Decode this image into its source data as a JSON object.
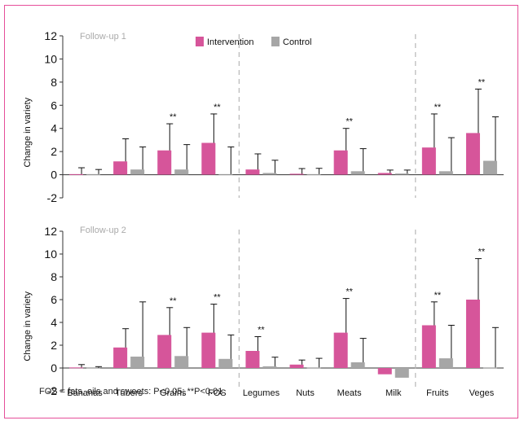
{
  "chart_data": [
    {
      "type": "bar",
      "panel_label": "Follow-up 1",
      "ylabel": "Change in variety",
      "ylim": [
        -2,
        12
      ],
      "yticks": [
        -2,
        0,
        2,
        4,
        6,
        8,
        10,
        12
      ],
      "categories": [
        "Bananas",
        "Tubers",
        "Grains",
        "FOS",
        "Legumes",
        "Nuts",
        "Meats",
        "Milk",
        "Fruits",
        "Veges"
      ],
      "legend_position": "top-center",
      "series": [
        {
          "name": "Intervention",
          "color": "#d6559a",
          "values": [
            0.05,
            1.15,
            2.1,
            2.75,
            0.45,
            0.08,
            2.1,
            0.15,
            2.35,
            3.6
          ],
          "error": [
            0.55,
            1.95,
            2.3,
            2.5,
            1.35,
            0.45,
            1.9,
            0.25,
            2.9,
            3.8
          ]
        },
        {
          "name": "Control",
          "color": "#a6a6a6",
          "values": [
            0.05,
            0.45,
            0.45,
            0.05,
            0.15,
            0.05,
            0.3,
            0.1,
            0.3,
            1.2
          ],
          "error": [
            0.4,
            1.95,
            2.15,
            2.35,
            1.1,
            0.5,
            1.95,
            0.3,
            2.9,
            3.8
          ]
        }
      ],
      "annotations": [
        {
          "category": "Grains",
          "text": "**"
        },
        {
          "category": "FOS",
          "text": "**"
        },
        {
          "category": "Meats",
          "text": "**"
        },
        {
          "category": "Fruits",
          "text": "**"
        },
        {
          "category": "Veges",
          "text": "**"
        }
      ]
    },
    {
      "type": "bar",
      "panel_label": "Follow-up 2",
      "ylabel": "Change in variety",
      "ylim": [
        -2,
        12
      ],
      "yticks": [
        -2,
        0,
        2,
        4,
        6,
        8,
        10,
        12
      ],
      "categories": [
        "Bananas",
        "Tubers",
        "Grains",
        "FOS",
        "Legumes",
        "Nuts",
        "Meats",
        "Milk",
        "Fruits",
        "Veges"
      ],
      "series": [
        {
          "name": "Intervention",
          "color": "#d6559a",
          "values": [
            0.05,
            1.8,
            2.9,
            3.1,
            1.5,
            0.3,
            3.1,
            -0.55,
            3.75,
            6.0
          ],
          "error": [
            0.25,
            1.65,
            2.4,
            2.5,
            1.25,
            0.4,
            3.0,
            0.0,
            2.05,
            3.6
          ]
        },
        {
          "name": "Control",
          "color": "#a6a6a6",
          "values": [
            0.02,
            1.0,
            1.05,
            0.8,
            0.15,
            0.05,
            0.5,
            -0.85,
            0.85,
            0.05
          ],
          "error": [
            0.1,
            4.8,
            2.5,
            2.1,
            0.8,
            0.8,
            2.1,
            0.0,
            2.9,
            3.5
          ]
        }
      ],
      "annotations": [
        {
          "category": "Grains",
          "text": "**"
        },
        {
          "category": "FOS",
          "text": "**"
        },
        {
          "category": "Legumes",
          "text": "**"
        },
        {
          "category": "Meats",
          "text": "**"
        },
        {
          "category": "Fruits",
          "text": "**"
        },
        {
          "category": "Veges",
          "text": "**"
        }
      ]
    }
  ],
  "footnote": "FOS = fats, oils and sweets: P<0.05; **P<0.01"
}
